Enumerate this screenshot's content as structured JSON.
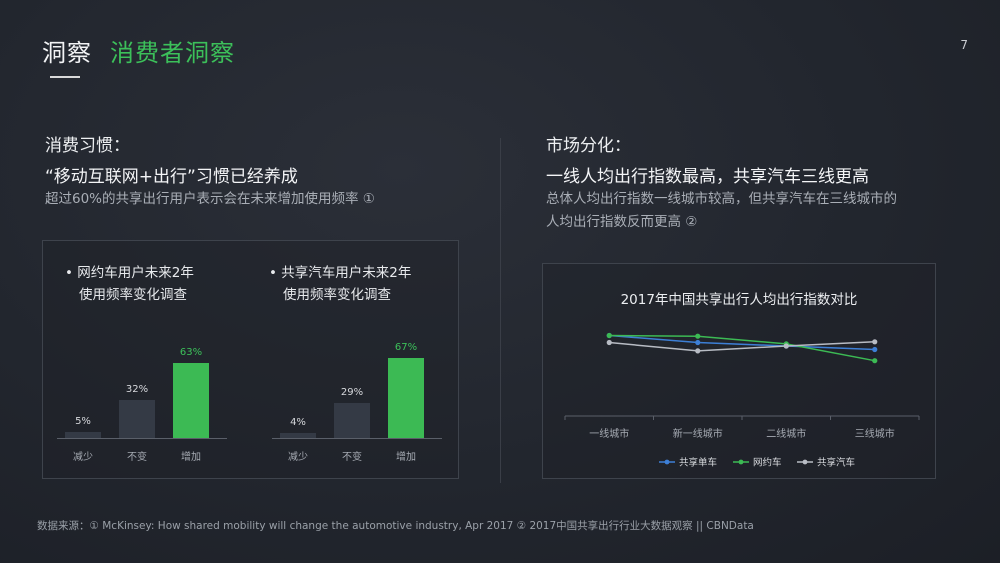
{
  "header": {
    "title_main": "洞察",
    "title_sub": "消费者洞察",
    "page_number": "7"
  },
  "left": {
    "heading": "消费习惯：",
    "subheading": "“移动互联网+出行”习惯已经养成",
    "description": "超过60%的共享出行用户表示会在未来增加使用频率 ①",
    "chart_data": [
      {
        "type": "bar",
        "title_line1": "• 网约车用户未来2年",
        "title_line2": "使用频率变化调查",
        "categories": [
          "减少",
          "不变",
          "增加"
        ],
        "values": [
          5,
          32,
          63
        ],
        "labels": [
          "5%",
          "32%",
          "63%"
        ],
        "highlight_color": "#3cba54"
      },
      {
        "type": "bar",
        "title_line1": "• 共享汽车用户未来2年",
        "title_line2": "使用频率变化调查",
        "categories": [
          "减少",
          "不变",
          "增加"
        ],
        "values": [
          4,
          29,
          67
        ],
        "labels": [
          "4%",
          "29%",
          "67%"
        ],
        "highlight_color": "#3cba54"
      }
    ]
  },
  "right": {
    "heading": "市场分化：",
    "subheading": "一线人均出行指数最高，共享汽车三线更高",
    "description_line1": "总体人均出行指数一线城市较高，但共享汽车在三线城市的",
    "description_line2": "人均出行指数反而更高 ②",
    "chart_data": {
      "type": "line",
      "title": "2017年中国共享出行人均出行指数对比",
      "categories": [
        "一线城市",
        "新一线城市",
        "二线城市",
        "三线城市"
      ],
      "series": [
        {
          "name": "共享单车",
          "color": "#3d7fd6",
          "values": [
            1.15,
            1.05,
            1.0,
            0.95
          ]
        },
        {
          "name": "网约车",
          "color": "#3cba54",
          "values": [
            1.15,
            1.14,
            1.03,
            0.79
          ]
        },
        {
          "name": "共享汽车",
          "color": "#b8bcc4",
          "values": [
            1.05,
            0.93,
            1.0,
            1.06
          ]
        }
      ],
      "ylim": [
        0,
        1.6
      ],
      "legend": "bottom"
    }
  },
  "footer": {
    "source": "数据来源：① McKinsey: How shared mobility will change the automotive industry, Apr 2017  ② 2017中国共享出行行业大数据观察 || CBNData"
  }
}
